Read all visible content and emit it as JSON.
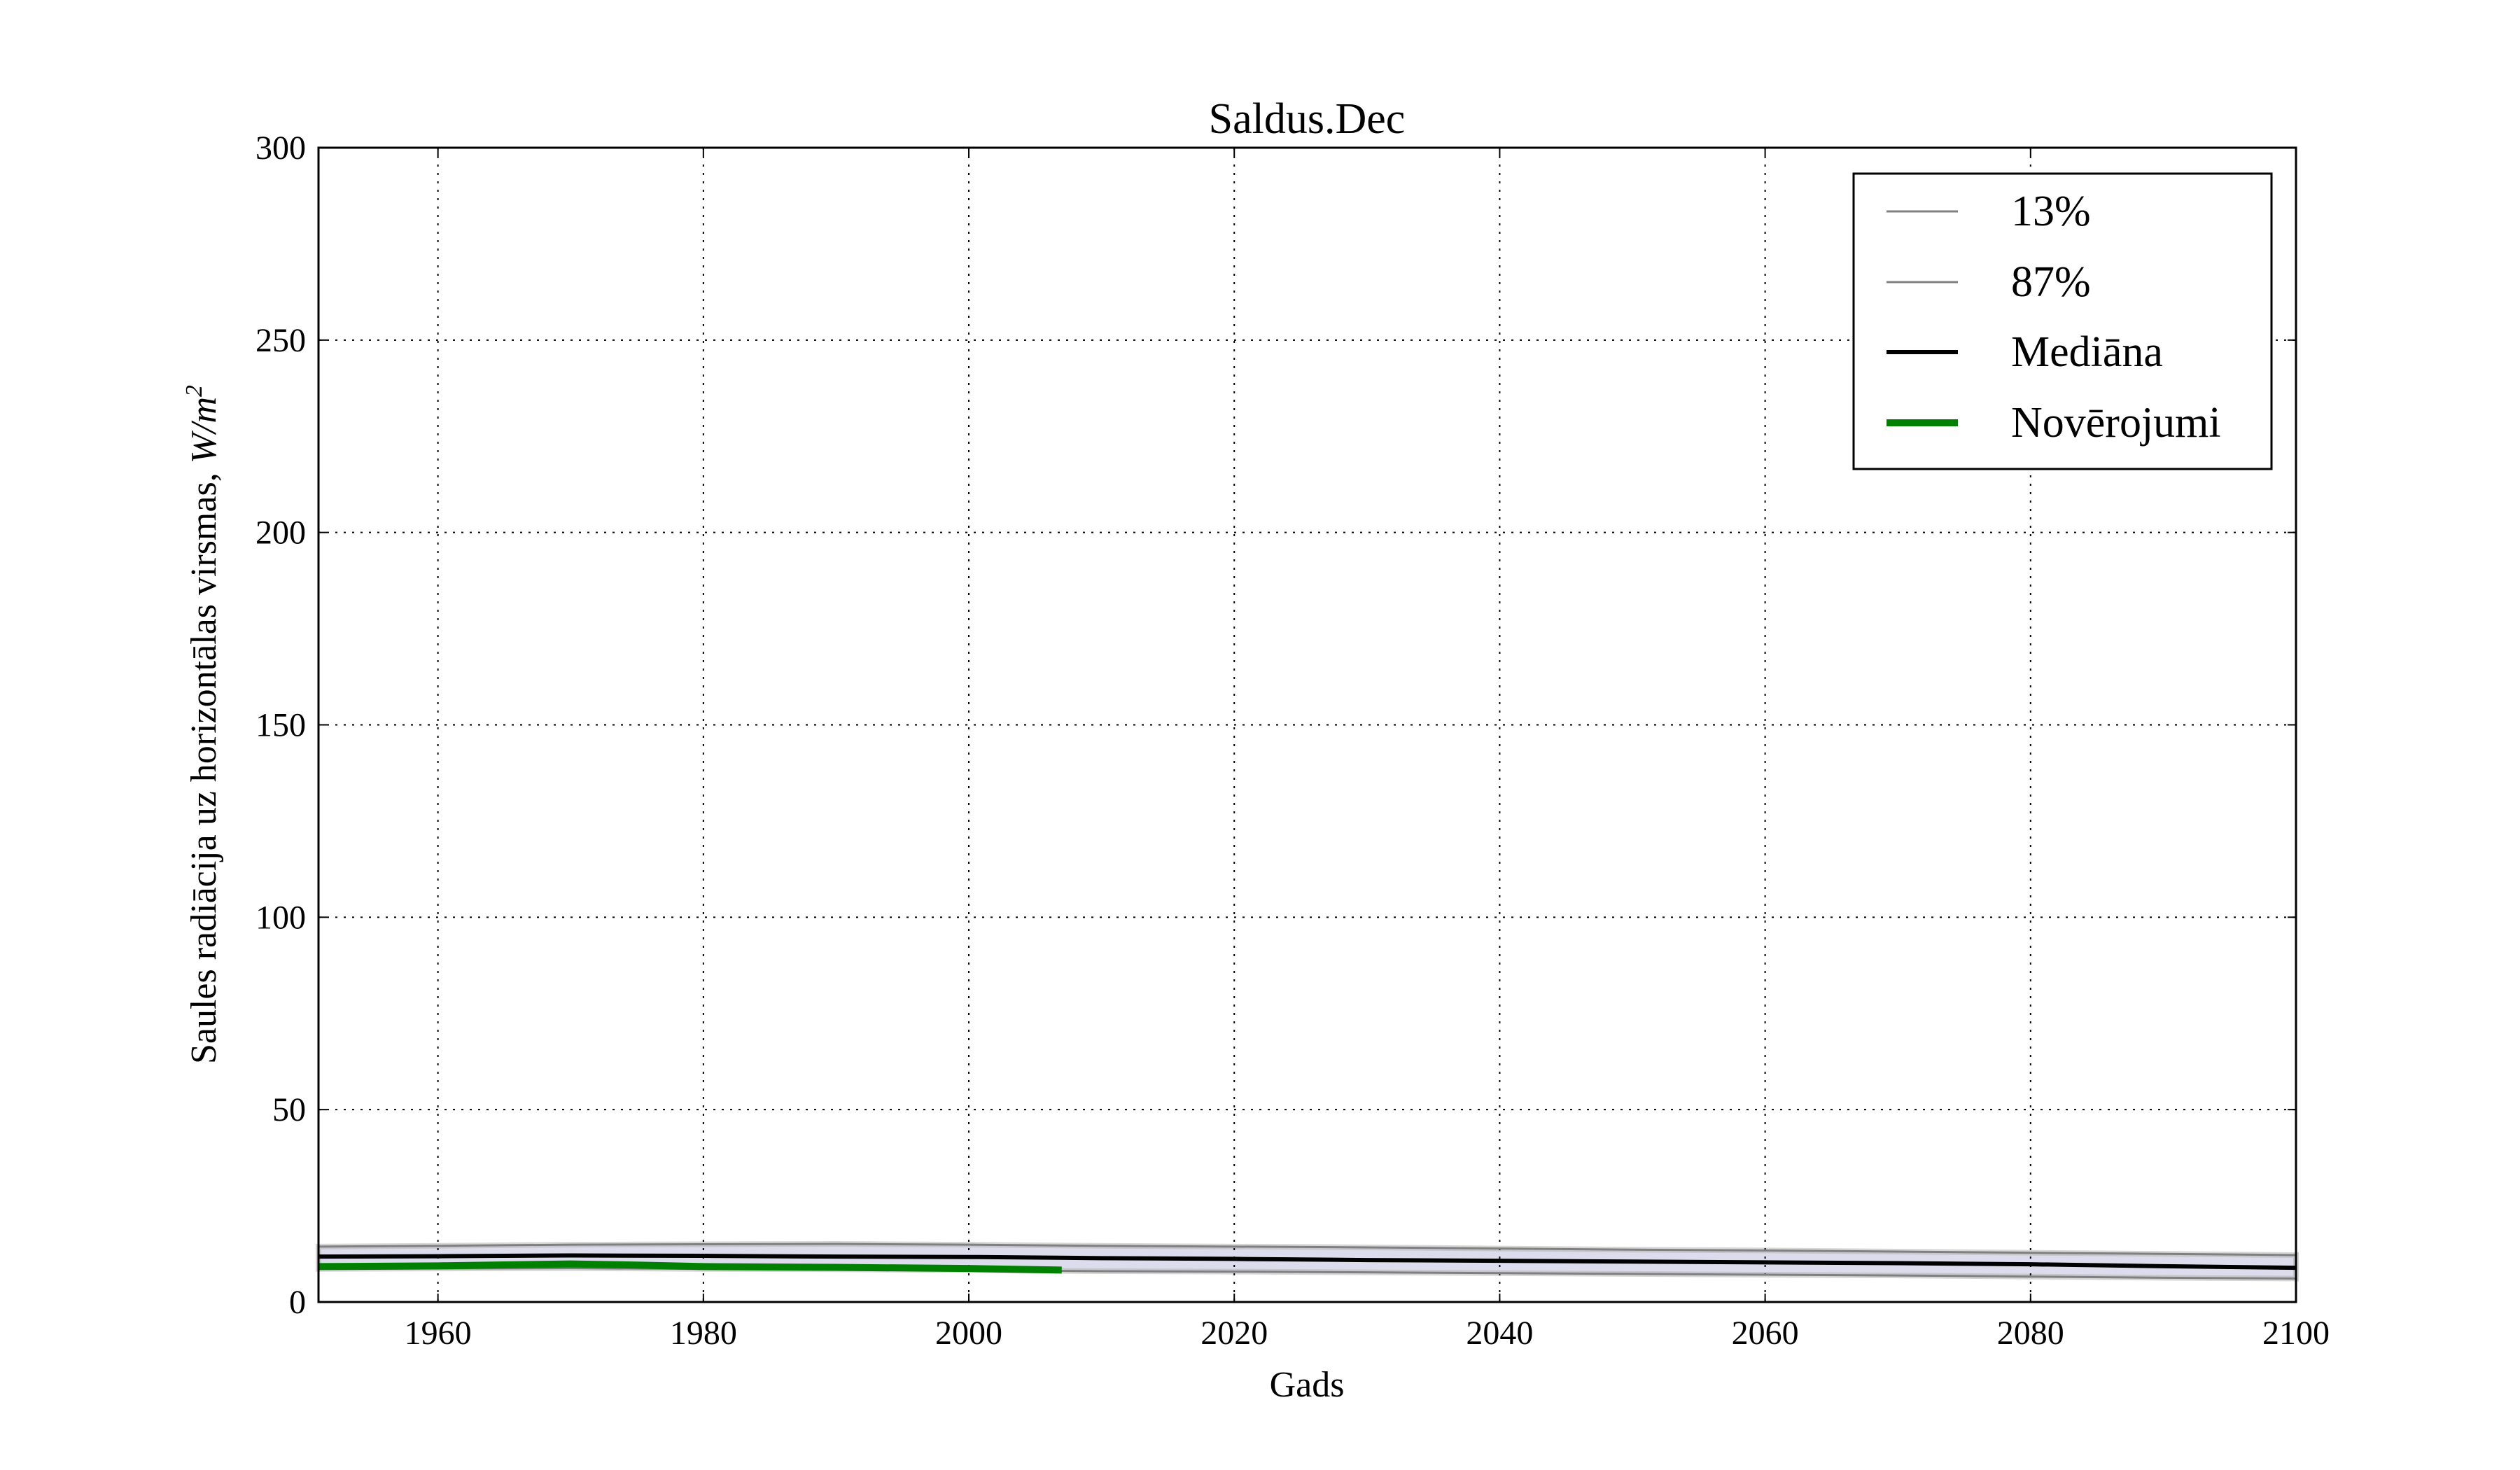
{
  "chart_data": {
    "type": "line",
    "title": "Saldus.Dec",
    "xlabel": "Gads",
    "ylabel": "Saules radiācija uz horizontālas virsmas, ",
    "ylabel_unit": "W/m",
    "ylabel_unit_exp": "2",
    "xlim": [
      1951,
      2100
    ],
    "ylim": [
      0,
      300
    ],
    "xticks": [
      1960,
      1980,
      2000,
      2020,
      2040,
      2060,
      2080,
      2100
    ],
    "yticks": [
      0,
      50,
      100,
      150,
      200,
      250,
      300
    ],
    "grid": true,
    "legend_position": "top-right",
    "series": [
      {
        "name": "13%",
        "color": "#808080",
        "x": [
          1951,
          1960,
          1970,
          1980,
          1990,
          2000,
          2010,
          2020,
          2030,
          2040,
          2050,
          2060,
          2070,
          2080,
          2090,
          2100
        ],
        "y": [
          8.6,
          8.7,
          8.8,
          8.6,
          8.5,
          8.3,
          8.0,
          7.9,
          7.7,
          7.5,
          7.3,
          7.1,
          6.9,
          6.6,
          6.3,
          6.1
        ]
      },
      {
        "name": "87%",
        "color": "#808080",
        "x": [
          1951,
          1960,
          1970,
          1980,
          1990,
          2000,
          2010,
          2020,
          2030,
          2040,
          2050,
          2060,
          2070,
          2080,
          2090,
          2100
        ],
        "y": [
          14.4,
          14.6,
          14.9,
          15.0,
          15.1,
          14.9,
          14.6,
          14.4,
          14.2,
          13.9,
          13.6,
          13.4,
          13.1,
          12.8,
          12.5,
          12.2
        ]
      },
      {
        "name": "Mediāna",
        "color": "#000000",
        "x": [
          1951,
          1960,
          1970,
          1980,
          1990,
          2000,
          2010,
          2020,
          2030,
          2040,
          2050,
          2060,
          2070,
          2080,
          2090,
          2100
        ],
        "y": [
          11.8,
          11.9,
          12.1,
          12.0,
          11.8,
          11.7,
          11.4,
          11.2,
          10.9,
          10.7,
          10.5,
          10.3,
          10.1,
          9.8,
          9.3,
          8.9
        ]
      },
      {
        "name": "Novērojumi",
        "color": "#008000",
        "x": [
          1951,
          1960,
          1970,
          1975,
          1980,
          1990,
          2000,
          2007
        ],
        "y": [
          9.2,
          9.4,
          9.9,
          9.6,
          9.2,
          9.0,
          8.7,
          8.3
        ]
      }
    ]
  }
}
